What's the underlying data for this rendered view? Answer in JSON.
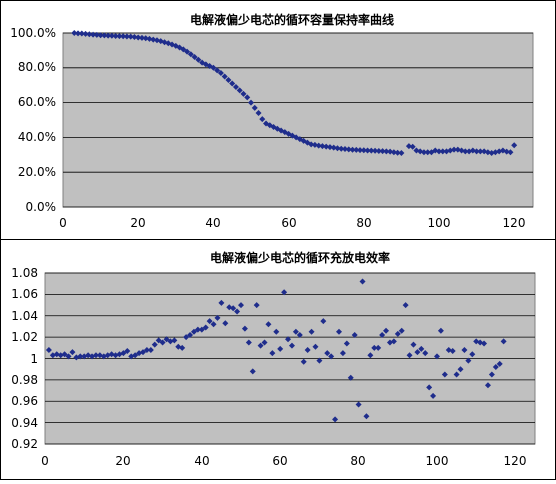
{
  "colors": {
    "plot_bg": "#c0c0c0",
    "marker": "#1f2d8c",
    "grid": "#000000",
    "border": "#808080"
  },
  "chart_data": [
    {
      "type": "scatter",
      "title": "电解液偏少电芯的循环容量保持率曲线",
      "xlim": [
        0,
        125
      ],
      "ylim": [
        0,
        100
      ],
      "x_ticks": [
        "0",
        "20",
        "40",
        "60",
        "80",
        "100",
        "120"
      ],
      "y_ticks": [
        "0.0%",
        "20.0%",
        "40.0%",
        "60.0%",
        "80.0%",
        "100.0%"
      ],
      "grid": "horizontal",
      "marker": "diamond",
      "series": [
        {
          "x": [
            3,
            4,
            5,
            6,
            7,
            8,
            9,
            10,
            11,
            12,
            13,
            14,
            15,
            16,
            17,
            18,
            19,
            20,
            21,
            22,
            23,
            24,
            25,
            26,
            27,
            28,
            29,
            30,
            31,
            32,
            33,
            34,
            35,
            36,
            37,
            38,
            39,
            40,
            41,
            42,
            43,
            44,
            45,
            46,
            47,
            48,
            49,
            50,
            51,
            52,
            53,
            54,
            55,
            56,
            57,
            58,
            59,
            60,
            61,
            62,
            63,
            64,
            65,
            66,
            67,
            68,
            69,
            70,
            71,
            72,
            73,
            74,
            75,
            76,
            77,
            78,
            79,
            80,
            81,
            82,
            83,
            84,
            85,
            86,
            87,
            88,
            89,
            90,
            92,
            93,
            94,
            95,
            96,
            97,
            98,
            99,
            100,
            101,
            102,
            103,
            104,
            105,
            106,
            107,
            108,
            109,
            110,
            111,
            112,
            113,
            114,
            115,
            116,
            117,
            118,
            119,
            120
          ],
          "y": [
            100,
            99.8,
            99.7,
            99.5,
            99.3,
            99.1,
            98.9,
            98.7,
            98.6,
            98.5,
            98.4,
            98.3,
            98.2,
            98.1,
            98,
            97.9,
            97.7,
            97.4,
            97.2,
            97,
            96.6,
            96.2,
            95.8,
            95.3,
            94.7,
            94.1,
            93.4,
            92.6,
            91.7,
            90.6,
            89.3,
            87.8,
            86.2,
            84.6,
            83,
            82,
            81,
            80,
            78.5,
            77,
            75,
            73,
            71,
            69,
            67,
            65,
            63,
            60,
            57,
            54,
            50.5,
            48,
            47,
            46,
            45,
            44,
            43,
            42,
            41,
            40,
            39,
            38,
            37,
            36,
            35.7,
            35.3,
            35,
            34.7,
            34.4,
            34.1,
            33.8,
            33.5,
            33.3,
            33.1,
            32.9,
            32.8,
            32.7,
            32.6,
            32.5,
            32.4,
            32.3,
            32.2,
            32.1,
            32,
            31.8,
            31.5,
            31.2,
            31,
            35,
            34.6,
            32.5,
            32,
            31.5,
            31.5,
            31.5,
            32.5,
            32,
            32,
            32,
            32.5,
            33,
            33,
            32.5,
            32,
            32,
            32.5,
            32,
            32,
            32,
            31.5,
            31,
            31.5,
            32,
            32.5,
            31.8,
            31.5,
            35.5
          ]
        }
      ]
    },
    {
      "type": "scatter",
      "title": "电解液偏少电芯的循环充放电效率",
      "xlim": [
        0,
        125
      ],
      "ylim": [
        0.92,
        1.08
      ],
      "x_ticks": [
        "0",
        "20",
        "40",
        "60",
        "80",
        "100",
        "120"
      ],
      "y_ticks": [
        "0.92",
        "0.94",
        "0.96",
        "0.98",
        "1",
        "1.02",
        "1.04",
        "1.06",
        "1.08"
      ],
      "grid": "horizontal",
      "marker": "diamond",
      "series": [
        {
          "x": [
            1,
            2,
            3,
            4,
            5,
            6,
            7,
            8,
            9,
            10,
            11,
            12,
            13,
            14,
            15,
            16,
            17,
            18,
            19,
            20,
            21,
            22,
            23,
            24,
            25,
            26,
            27,
            28,
            29,
            30,
            31,
            32,
            33,
            34,
            35,
            36,
            37,
            38,
            39,
            40,
            41,
            42,
            43,
            44,
            45,
            46,
            47,
            48,
            49,
            50,
            51,
            52,
            53,
            54,
            55,
            56,
            57,
            58,
            59,
            60,
            61,
            62,
            63,
            64,
            65,
            66,
            67,
            68,
            69,
            70,
            71,
            72,
            73,
            74,
            75,
            76,
            77,
            78,
            79,
            80,
            81,
            82,
            83,
            84,
            85,
            86,
            87,
            88,
            89,
            90,
            91,
            92,
            93,
            94,
            95,
            96,
            97,
            98,
            99,
            100,
            101,
            102,
            103,
            104,
            105,
            106,
            107,
            108,
            109,
            110,
            111,
            112,
            113,
            114,
            115,
            116,
            117
          ],
          "y": [
            1.008,
            1.003,
            1.004,
            1.003,
            1.004,
            1.002,
            1.006,
            1.001,
            1.002,
            1.002,
            1.003,
            1.002,
            1.003,
            1.003,
            1.002,
            1.003,
            1.004,
            1.003,
            1.004,
            1.005,
            1.007,
            1.002,
            1.003,
            1.005,
            1.006,
            1.008,
            1.008,
            1.013,
            1.017,
            1.015,
            1.018,
            1.016,
            1.017,
            1.011,
            1.01,
            1.02,
            1.022,
            1.025,
            1.027,
            1.027,
            1.029,
            1.035,
            1.032,
            1.038,
            1.052,
            1.033,
            1.048,
            1.047,
            1.044,
            1.05,
            1.028,
            1.015,
            0.988,
            1.05,
            1.012,
            1.015,
            1.032,
            1.005,
            1.025,
            1.009,
            1.062,
            1.018,
            1.012,
            1.025,
            1.022,
            0.997,
            1.008,
            1.025,
            1.011,
            0.998,
            1.035,
            1.005,
            1.002,
            0.943,
            1.025,
            1.005,
            1.014,
            0.982,
            1.022,
            0.957,
            1.072,
            0.946,
            1.003,
            1.01,
            1.01,
            1.022,
            1.026,
            1.015,
            1.016,
            1.023,
            1.026,
            1.05,
            1.003,
            1.013,
            1.006,
            1.009,
            1.005,
            0.973,
            0.965,
            1.002,
            1.026,
            0.985,
            1.008,
            1.007,
            0.985,
            0.99,
            1.008,
            0.998,
            1.004,
            1.016,
            1.015,
            1.014,
            0.975,
            0.985,
            0.992,
            0.995,
            1.016
          ]
        }
      ]
    }
  ]
}
